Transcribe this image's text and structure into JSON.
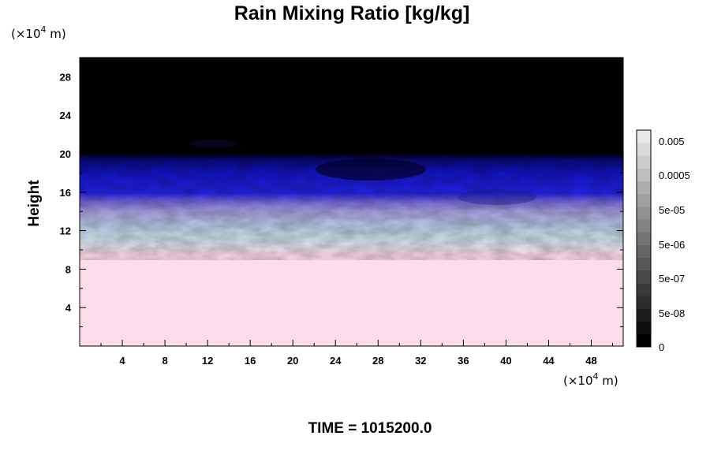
{
  "chart_data": {
    "type": "heatmap",
    "title": "Rain Mixing Ratio [kg/kg]",
    "ylabel": "Height",
    "x_unit": "(×10",
    "y_unit": "(×10",
    "unit_exp": "4",
    "unit_suffix": " m)",
    "x_ticks": [
      4,
      8,
      12,
      16,
      20,
      24,
      28,
      32,
      36,
      40,
      44,
      48
    ],
    "y_ticks": [
      4,
      8,
      12,
      16,
      20,
      24,
      28
    ],
    "xlim": [
      0,
      51
    ],
    "ylim": [
      0,
      30
    ],
    "colorbar": {
      "tick_labels": [
        "0.005",
        "0.0005",
        "5e-05",
        "5e-06",
        "5e-07",
        "5e-08",
        "0"
      ],
      "n_levels": 17
    },
    "field_description_bands": [
      {
        "name": "upper",
        "y_range": [
          19.5,
          30
        ],
        "color": "#000000"
      },
      {
        "name": "deep-blue",
        "y_range": [
          15.5,
          19.5
        ],
        "color": "#1010d0"
      },
      {
        "name": "violet-lavender",
        "y_range": [
          13,
          15.5
        ],
        "color": "#9090e0"
      },
      {
        "name": "light-blue",
        "y_range": [
          10,
          13
        ],
        "color": "#c8dcf0"
      },
      {
        "name": "lower-pink",
        "y_range": [
          0,
          10
        ],
        "color": "#ffdcec"
      }
    ],
    "footer_label": "TIME = 1015200.0"
  }
}
